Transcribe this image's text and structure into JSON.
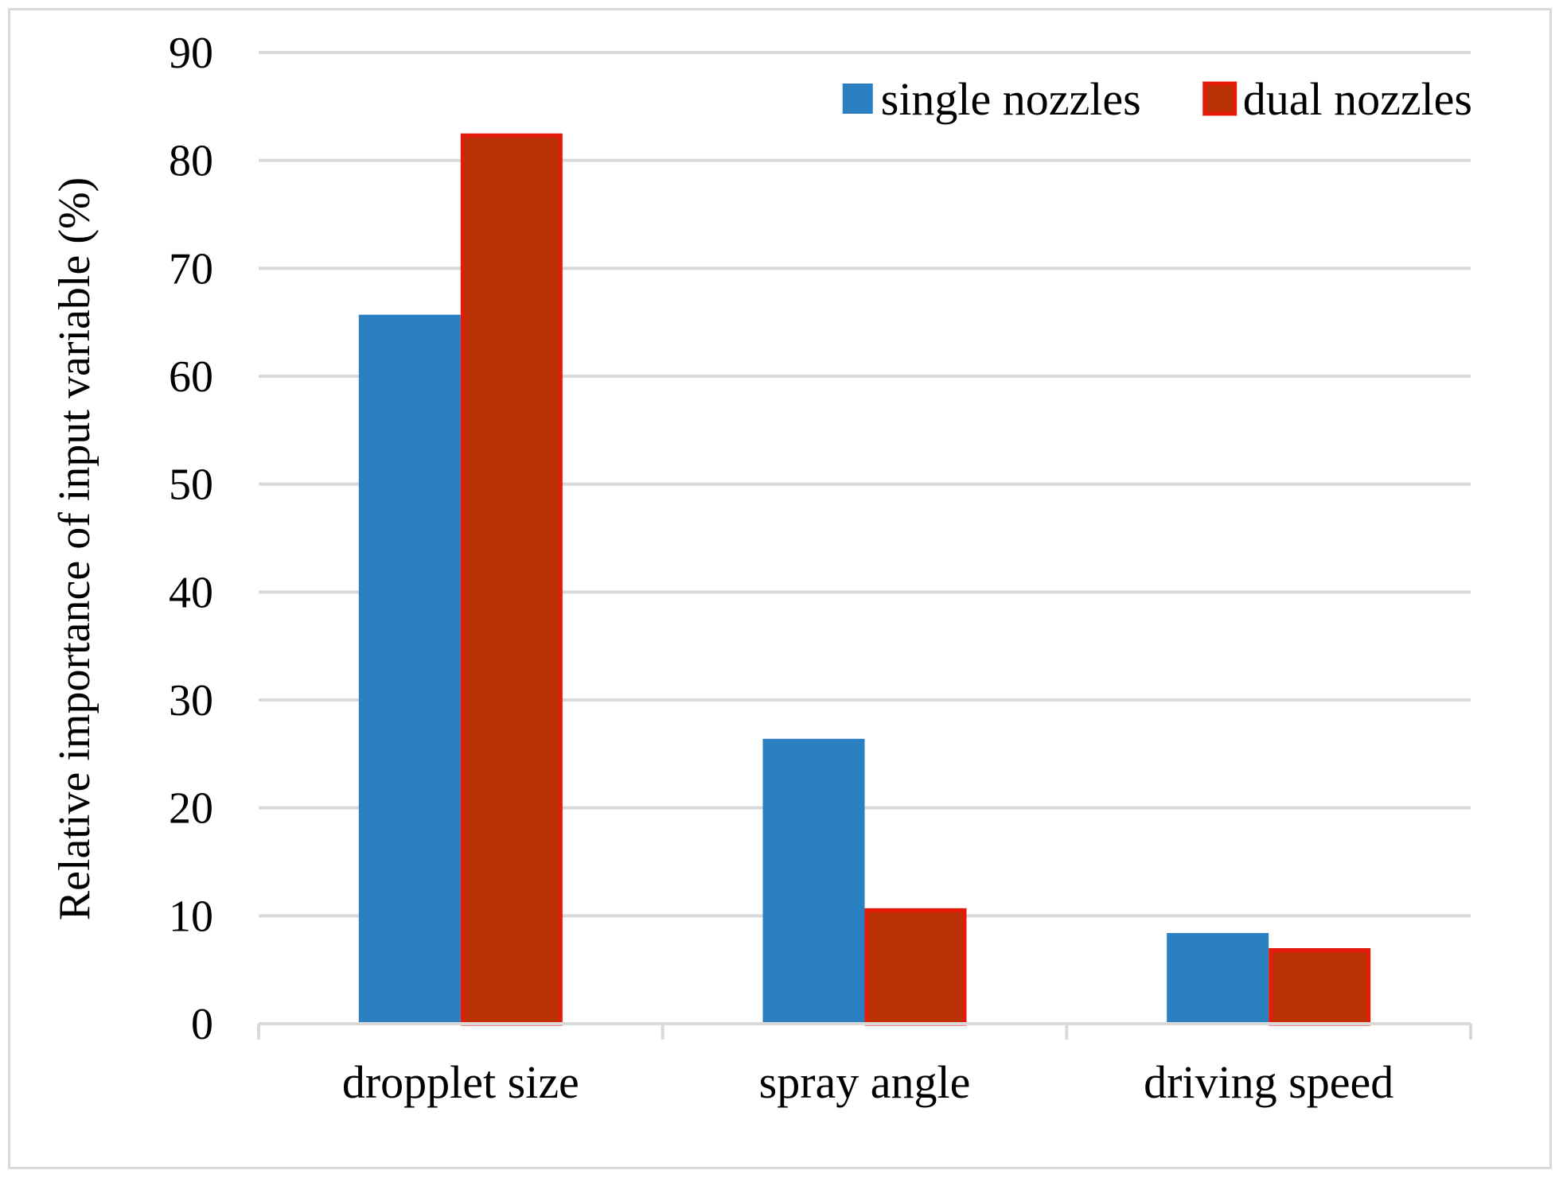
{
  "chart_data": {
    "type": "bar",
    "title": "",
    "xlabel": "",
    "ylabel": "Relative importance of input variable (%)",
    "ylim": [
      0,
      90
    ],
    "ytick_step": 10,
    "grid": true,
    "legend_position": "top-right",
    "categories": [
      "dropplet size",
      "spray angle",
      "driving speed"
    ],
    "series": [
      {
        "name": "single nozzles",
        "values": [
          65.7,
          26.4,
          8.4
        ],
        "color": "#2a80c0",
        "border": "#2a80c0"
      },
      {
        "name": "dual nozzles",
        "values": [
          82.5,
          10.7,
          7.0
        ],
        "color": "#bb3207",
        "border": "#e61a0a"
      }
    ]
  }
}
